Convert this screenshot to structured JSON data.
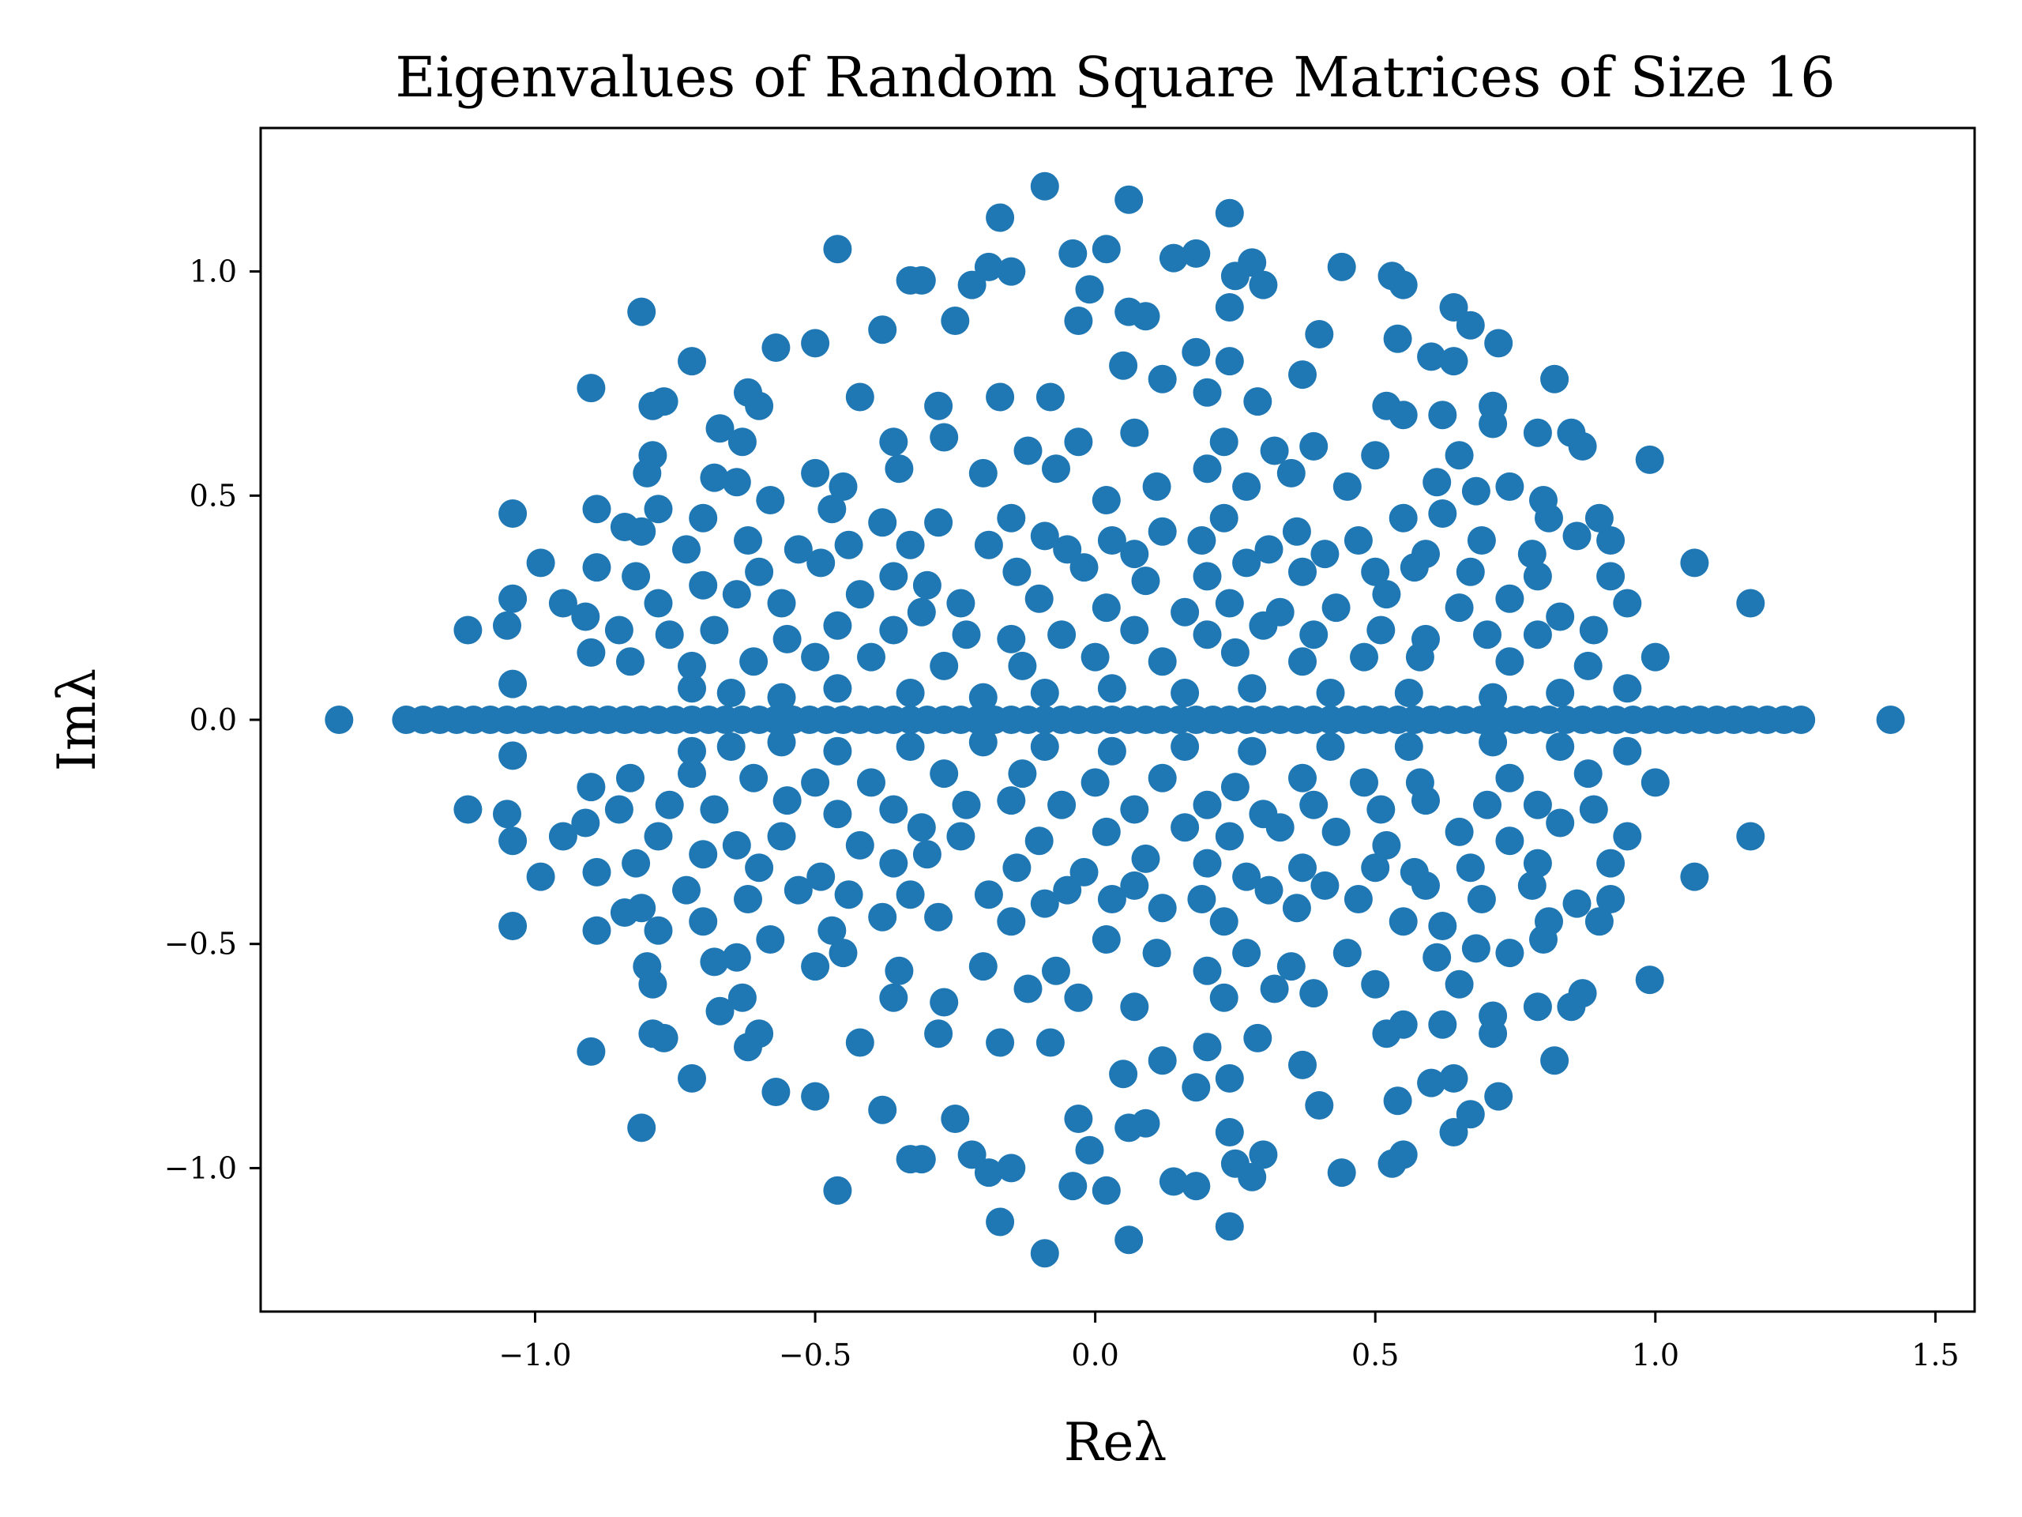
{
  "chart_data": {
    "type": "scatter",
    "title": "Eigenvalues of Random Square Matrices of Size 16",
    "xlabel": "Reλ",
    "ylabel": "Imλ",
    "xlim": [
      -1.49,
      1.57
    ],
    "ylim": [
      -1.32,
      1.32
    ],
    "xticks": [
      -1.0,
      -0.5,
      0.0,
      0.5,
      1.0,
      1.5
    ],
    "xtick_labels": [
      "−1.0",
      "−0.5",
      "0.0",
      "0.5",
      "1.0",
      "1.5"
    ],
    "yticks": [
      -1.0,
      -0.5,
      0.0,
      0.5,
      1.0
    ],
    "ytick_labels": [
      "−1.0",
      "−0.5",
      "0.0",
      "0.5",
      "1.0"
    ],
    "grid": false,
    "legend": "none",
    "marker_color": "#1f77b4",
    "matrix_size": 16,
    "mirror_about_real_axis": true,
    "real_eigenvalues": [
      -1.35,
      -1.23,
      -1.2,
      -1.17,
      -1.14,
      -1.11,
      -1.08,
      -1.05,
      -1.02,
      -0.99,
      -0.96,
      -0.93,
      -0.9,
      -0.87,
      -0.84,
      -0.81,
      -0.78,
      -0.75,
      -0.72,
      -0.69,
      -0.66,
      -0.63,
      -0.6,
      -0.57,
      -0.54,
      -0.51,
      -0.48,
      -0.45,
      -0.42,
      -0.39,
      -0.36,
      -0.33,
      -0.3,
      -0.27,
      -0.24,
      -0.21,
      -0.18,
      -0.15,
      -0.12,
      -0.09,
      -0.06,
      -0.03,
      0.0,
      0.03,
      0.06,
      0.09,
      0.12,
      0.15,
      0.18,
      0.21,
      0.24,
      0.27,
      0.3,
      0.33,
      0.36,
      0.39,
      0.42,
      0.45,
      0.48,
      0.51,
      0.54,
      0.57,
      0.6,
      0.63,
      0.66,
      0.69,
      0.72,
      0.75,
      0.78,
      0.81,
      0.84,
      0.87,
      0.9,
      0.93,
      0.96,
      0.99,
      1.02,
      1.05,
      1.08,
      1.11,
      1.14,
      1.17,
      1.2,
      1.23,
      1.26,
      1.42
    ],
    "complex_eigenvalues_upper_half": [
      [
        -0.09,
        1.19
      ],
      [
        0.06,
        1.16
      ],
      [
        0.24,
        1.13
      ],
      [
        -0.17,
        1.12
      ],
      [
        -0.46,
        1.05
      ],
      [
        0.02,
        1.05
      ],
      [
        0.14,
        1.03
      ],
      [
        0.18,
        1.04
      ],
      [
        -0.04,
        1.04
      ],
      [
        0.28,
        1.02
      ],
      [
        -0.19,
        1.01
      ],
      [
        -0.15,
        1.0
      ],
      [
        0.44,
        1.01
      ],
      [
        0.53,
        0.99
      ],
      [
        0.25,
        0.99
      ],
      [
        0.3,
        0.97
      ],
      [
        -0.33,
        0.98
      ],
      [
        -0.31,
        0.98
      ],
      [
        -0.22,
        0.97
      ],
      [
        -0.01,
        0.96
      ],
      [
        0.55,
        0.97
      ],
      [
        -0.81,
        0.91
      ],
      [
        0.24,
        0.92
      ],
      [
        0.64,
        0.92
      ],
      [
        0.67,
        0.88
      ],
      [
        -0.25,
        0.89
      ],
      [
        0.06,
        0.91
      ],
      [
        0.09,
        0.9
      ],
      [
        -0.03,
        0.89
      ],
      [
        -0.38,
        0.87
      ],
      [
        0.4,
        0.86
      ],
      [
        0.72,
        0.84
      ],
      [
        -0.57,
        0.83
      ],
      [
        -0.5,
        0.84
      ],
      [
        0.54,
        0.85
      ],
      [
        0.6,
        0.81
      ],
      [
        0.64,
        0.8
      ],
      [
        0.37,
        0.77
      ],
      [
        0.82,
        0.76
      ],
      [
        -0.9,
        0.74
      ],
      [
        -0.72,
        0.8
      ],
      [
        0.18,
        0.82
      ],
      [
        0.24,
        0.8
      ],
      [
        -0.62,
        0.73
      ],
      [
        -0.6,
        0.7
      ],
      [
        -0.77,
        0.71
      ],
      [
        -0.79,
        0.7
      ],
      [
        -0.17,
        0.72
      ],
      [
        0.05,
        0.79
      ],
      [
        0.12,
        0.76
      ],
      [
        0.2,
        0.73
      ],
      [
        0.29,
        0.71
      ],
      [
        0.52,
        0.7
      ],
      [
        0.55,
        0.68
      ],
      [
        0.62,
        0.68
      ],
      [
        0.71,
        0.7
      ],
      [
        -0.28,
        0.7
      ],
      [
        -0.08,
        0.72
      ],
      [
        -0.42,
        0.72
      ],
      [
        -0.67,
        0.65
      ],
      [
        -0.63,
        0.62
      ],
      [
        -0.36,
        0.62
      ],
      [
        -0.27,
        0.63
      ],
      [
        -0.12,
        0.6
      ],
      [
        -0.03,
        0.62
      ],
      [
        0.07,
        0.64
      ],
      [
        0.23,
        0.62
      ],
      [
        0.32,
        0.6
      ],
      [
        0.39,
        0.61
      ],
      [
        0.5,
        0.59
      ],
      [
        0.65,
        0.59
      ],
      [
        0.71,
        0.66
      ],
      [
        0.79,
        0.64
      ],
      [
        0.85,
        0.64
      ],
      [
        0.87,
        0.61
      ],
      [
        0.99,
        0.58
      ],
      [
        -0.79,
        0.59
      ],
      [
        -0.8,
        0.55
      ],
      [
        -0.68,
        0.54
      ],
      [
        -0.64,
        0.53
      ],
      [
        -0.5,
        0.55
      ],
      [
        -0.45,
        0.52
      ],
      [
        -0.35,
        0.56
      ],
      [
        -0.2,
        0.55
      ],
      [
        -0.07,
        0.56
      ],
      [
        0.11,
        0.52
      ],
      [
        0.2,
        0.56
      ],
      [
        0.27,
        0.52
      ],
      [
        0.35,
        0.55
      ],
      [
        0.45,
        0.52
      ],
      [
        0.61,
        0.53
      ],
      [
        0.68,
        0.51
      ],
      [
        0.74,
        0.52
      ],
      [
        -1.04,
        0.46
      ],
      [
        -0.89,
        0.47
      ],
      [
        -0.78,
        0.47
      ],
      [
        -0.7,
        0.45
      ],
      [
        -0.58,
        0.49
      ],
      [
        -0.47,
        0.47
      ],
      [
        -0.38,
        0.44
      ],
      [
        -0.28,
        0.44
      ],
      [
        -0.15,
        0.45
      ],
      [
        -0.09,
        0.41
      ],
      [
        0.02,
        0.49
      ],
      [
        0.03,
        0.4
      ],
      [
        0.12,
        0.42
      ],
      [
        0.23,
        0.45
      ],
      [
        0.36,
        0.42
      ],
      [
        0.47,
        0.4
      ],
      [
        0.55,
        0.45
      ],
      [
        0.62,
        0.46
      ],
      [
        0.8,
        0.49
      ],
      [
        0.81,
        0.45
      ],
      [
        0.9,
        0.45
      ],
      [
        -0.84,
        0.43
      ],
      [
        -0.81,
        0.42
      ],
      [
        -0.73,
        0.38
      ],
      [
        -0.62,
        0.4
      ],
      [
        -0.53,
        0.38
      ],
      [
        -0.44,
        0.39
      ],
      [
        -0.33,
        0.39
      ],
      [
        -0.19,
        0.39
      ],
      [
        -0.05,
        0.38
      ],
      [
        0.07,
        0.37
      ],
      [
        0.19,
        0.4
      ],
      [
        0.31,
        0.38
      ],
      [
        0.41,
        0.37
      ],
      [
        0.59,
        0.37
      ],
      [
        0.69,
        0.4
      ],
      [
        0.78,
        0.37
      ],
      [
        0.86,
        0.41
      ],
      [
        0.92,
        0.4
      ],
      [
        -0.99,
        0.35
      ],
      [
        -0.89,
        0.34
      ],
      [
        -0.82,
        0.32
      ],
      [
        -0.7,
        0.3
      ],
      [
        -0.6,
        0.33
      ],
      [
        -0.49,
        0.35
      ],
      [
        -0.36,
        0.32
      ],
      [
        -0.3,
        0.3
      ],
      [
        -0.14,
        0.33
      ],
      [
        -0.02,
        0.34
      ],
      [
        0.09,
        0.31
      ],
      [
        0.2,
        0.32
      ],
      [
        0.27,
        0.35
      ],
      [
        0.37,
        0.33
      ],
      [
        0.5,
        0.33
      ],
      [
        0.57,
        0.34
      ],
      [
        0.67,
        0.33
      ],
      [
        0.79,
        0.32
      ],
      [
        0.92,
        0.32
      ],
      [
        1.07,
        0.35
      ],
      [
        -1.04,
        0.27
      ],
      [
        -0.95,
        0.26
      ],
      [
        -0.91,
        0.23
      ],
      [
        -0.78,
        0.26
      ],
      [
        -0.64,
        0.28
      ],
      [
        -0.56,
        0.26
      ],
      [
        -0.42,
        0.28
      ],
      [
        -0.31,
        0.24
      ],
      [
        -0.24,
        0.26
      ],
      [
        -0.1,
        0.27
      ],
      [
        0.02,
        0.25
      ],
      [
        0.16,
        0.24
      ],
      [
        0.24,
        0.26
      ],
      [
        0.33,
        0.24
      ],
      [
        0.43,
        0.25
      ],
      [
        0.52,
        0.28
      ],
      [
        0.65,
        0.25
      ],
      [
        0.74,
        0.27
      ],
      [
        0.83,
        0.23
      ],
      [
        0.95,
        0.26
      ],
      [
        -1.12,
        0.2
      ],
      [
        -1.05,
        0.21
      ],
      [
        -0.85,
        0.2
      ],
      [
        -0.76,
        0.19
      ],
      [
        -0.68,
        0.2
      ],
      [
        -0.55,
        0.18
      ],
      [
        -0.46,
        0.21
      ],
      [
        -0.36,
        0.2
      ],
      [
        -0.23,
        0.19
      ],
      [
        -0.15,
        0.18
      ],
      [
        -0.06,
        0.19
      ],
      [
        0.07,
        0.2
      ],
      [
        0.2,
        0.19
      ],
      [
        0.3,
        0.21
      ],
      [
        0.39,
        0.19
      ],
      [
        0.51,
        0.2
      ],
      [
        0.59,
        0.18
      ],
      [
        0.7,
        0.19
      ],
      [
        0.79,
        0.19
      ],
      [
        0.89,
        0.2
      ],
      [
        1.17,
        0.26
      ],
      [
        -0.9,
        0.15
      ],
      [
        -0.83,
        0.13
      ],
      [
        -0.72,
        0.12
      ],
      [
        -0.61,
        0.13
      ],
      [
        -0.5,
        0.14
      ],
      [
        -0.4,
        0.14
      ],
      [
        -0.27,
        0.12
      ],
      [
        -0.13,
        0.12
      ],
      [
        0.0,
        0.14
      ],
      [
        0.12,
        0.13
      ],
      [
        0.25,
        0.15
      ],
      [
        0.37,
        0.13
      ],
      [
        0.48,
        0.14
      ],
      [
        0.58,
        0.14
      ],
      [
        0.74,
        0.13
      ],
      [
        0.88,
        0.12
      ],
      [
        1.0,
        0.14
      ],
      [
        -1.04,
        0.08
      ],
      [
        -0.72,
        0.07
      ],
      [
        -0.65,
        0.06
      ],
      [
        -0.56,
        0.05
      ],
      [
        -0.46,
        0.07
      ],
      [
        -0.33,
        0.06
      ],
      [
        -0.2,
        0.05
      ],
      [
        -0.09,
        0.06
      ],
      [
        0.03,
        0.07
      ],
      [
        0.16,
        0.06
      ],
      [
        0.28,
        0.07
      ],
      [
        0.42,
        0.06
      ],
      [
        0.56,
        0.06
      ],
      [
        0.71,
        0.05
      ],
      [
        0.83,
        0.06
      ],
      [
        0.95,
        0.07
      ]
    ]
  }
}
